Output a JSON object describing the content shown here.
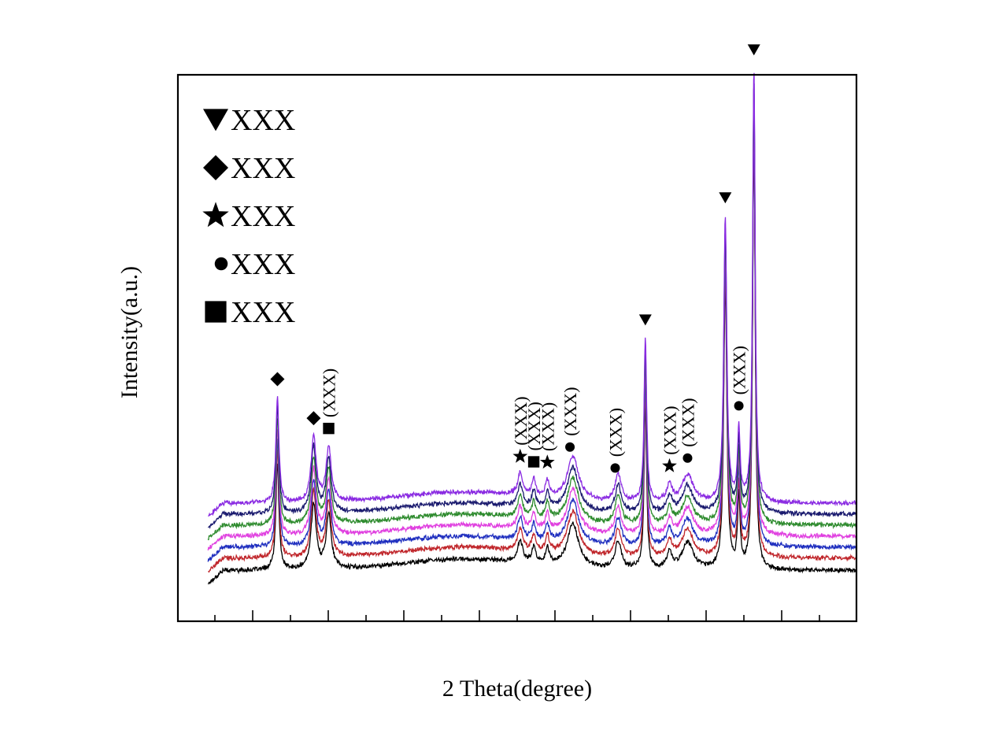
{
  "chart_data": {
    "type": "line",
    "title": "",
    "xlabel": "2 Theta(degree)",
    "ylabel": "Intensity(a.u.)",
    "xlim": [
      5,
      50
    ],
    "ylim": [
      0,
      1000
    ],
    "x_tick_labels": [],
    "y_tick_labels": [],
    "grid": false,
    "legend_position": "top-left",
    "series_colors": [
      "#000000",
      "#c0262b",
      "#1f2fbf",
      "#e040e0",
      "#2e8b2e",
      "#1a1a6e",
      "#8a2be2"
    ],
    "series_offsets": [
      0,
      22,
      42,
      62,
      82,
      102,
      122
    ],
    "peaks": [
      {
        "x": 11.6,
        "h": 195,
        "w": 0.12
      },
      {
        "x": 14.0,
        "h": 120,
        "w": 0.2
      },
      {
        "x": 15.0,
        "h": 100,
        "w": 0.2
      },
      {
        "x": 27.7,
        "h": 40,
        "w": 0.2
      },
      {
        "x": 28.6,
        "h": 30,
        "w": 0.15
      },
      {
        "x": 29.5,
        "h": 30,
        "w": 0.15
      },
      {
        "x": 31.2,
        "h": 80,
        "w": 0.45
      },
      {
        "x": 34.2,
        "h": 50,
        "w": 0.25
      },
      {
        "x": 36.0,
        "h": 300,
        "w": 0.1
      },
      {
        "x": 37.6,
        "h": 30,
        "w": 0.2
      },
      {
        "x": 38.8,
        "h": 50,
        "w": 0.45
      },
      {
        "x": 41.3,
        "h": 520,
        "w": 0.12
      },
      {
        "x": 42.2,
        "h": 130,
        "w": 0.1
      },
      {
        "x": 43.2,
        "h": 790,
        "w": 0.1
      }
    ],
    "legend": [
      {
        "marker": "down-triangle",
        "label": "XXX"
      },
      {
        "marker": "diamond",
        "label": "XXX"
      },
      {
        "marker": "star",
        "label": "XXX"
      },
      {
        "marker": "circle",
        "label": "XXX"
      },
      {
        "marker": "square",
        "label": "XXX"
      }
    ],
    "annotations": [
      {
        "marker": "diamond",
        "x": 11.6,
        "label": ""
      },
      {
        "marker": "diamond",
        "x": 14.0,
        "label": ""
      },
      {
        "marker": "square",
        "x": 15.0,
        "label": "(XXX)"
      },
      {
        "marker": "star",
        "x": 27.7,
        "label": "(XXX)"
      },
      {
        "marker": "square",
        "x": 28.6,
        "label": "(XXX)"
      },
      {
        "marker": "star",
        "x": 29.5,
        "label": "(XXX)"
      },
      {
        "marker": "circle",
        "x": 31.0,
        "label": "(XXX)"
      },
      {
        "marker": "circle",
        "x": 34.0,
        "label": "(XXX)"
      },
      {
        "marker": "down-triangle",
        "x": 36.0,
        "label": ""
      },
      {
        "marker": "star",
        "x": 37.6,
        "label": "(XXX)"
      },
      {
        "marker": "circle",
        "x": 38.8,
        "label": "(XXX)"
      },
      {
        "marker": "down-triangle",
        "x": 41.3,
        "label": ""
      },
      {
        "marker": "circle",
        "x": 42.2,
        "label": "(XXX)"
      },
      {
        "marker": "down-triangle",
        "x": 43.2,
        "label": ""
      }
    ]
  }
}
